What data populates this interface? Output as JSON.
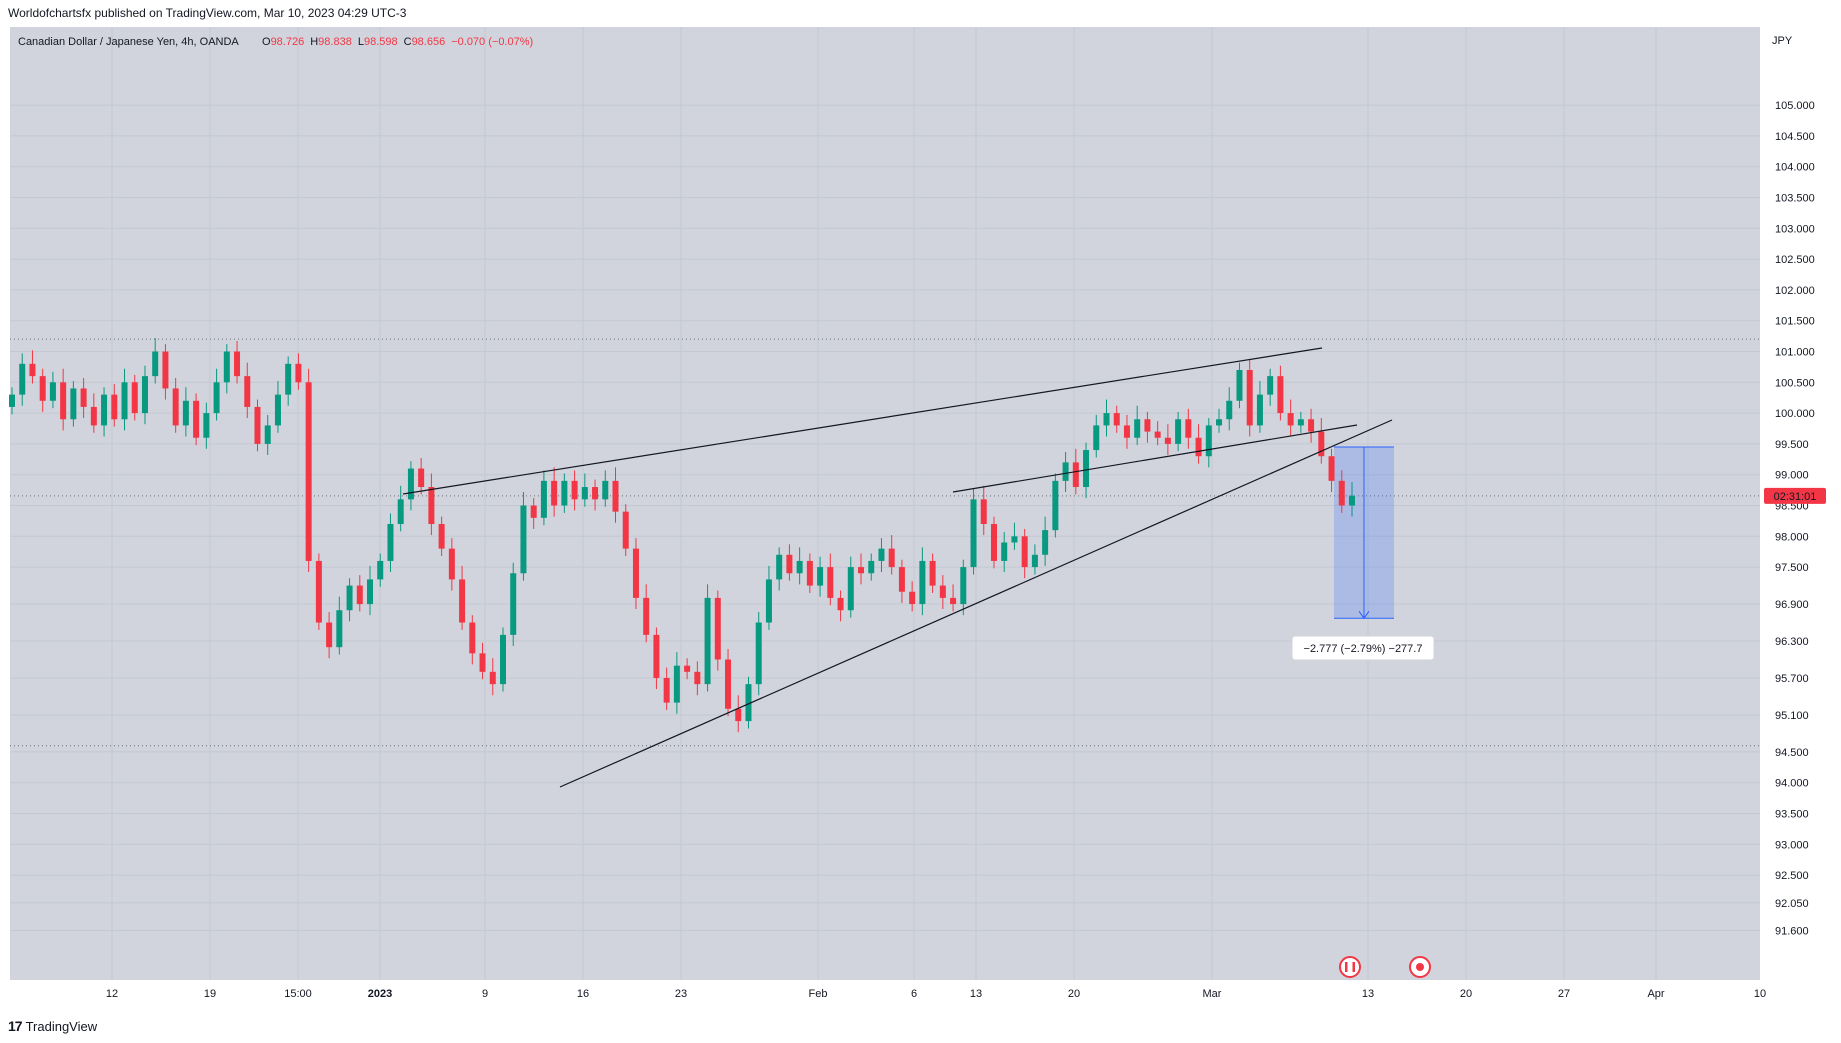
{
  "header": {
    "publisher_line": "Worldofchartsfx published on TradingView.com, Mar 10, 2023 04:29 UTC-3"
  },
  "legend": {
    "symbol": "Canadian Dollar / Japanese Yen, 4h, OANDA",
    "o_label": "O",
    "o_value": "98.726",
    "h_label": "H",
    "h_value": "98.838",
    "l_label": "L",
    "l_value": "98.598",
    "c_label": "C",
    "c_value": "98.656",
    "change": "−0.070 (−0.07%)"
  },
  "footer": {
    "brand": "TradingView",
    "logo_glyph": "17"
  },
  "chart_data": {
    "type": "candlestick",
    "currency": "JPY",
    "y_ticks": [
      "105.000",
      "104.500",
      "104.000",
      "103.500",
      "103.000",
      "102.500",
      "102.000",
      "101.500",
      "101.000",
      "100.500",
      "100.000",
      "99.500",
      "99.000",
      "98.500",
      "98.000",
      "97.500",
      "96.900",
      "96.300",
      "95.700",
      "95.100",
      "94.500",
      "94.000",
      "93.500",
      "93.000",
      "92.500",
      "92.050",
      "91.600"
    ],
    "x_ticks": [
      "12",
      "19",
      "15:00",
      "2023",
      "9",
      "16",
      "23",
      "Feb",
      "6",
      "13",
      "20",
      "Mar",
      "13",
      "20",
      "27",
      "Apr",
      "10"
    ],
    "countdown_label": "02:31:01",
    "current_price": 98.656,
    "horizontal_dotted_levels": [
      101.2,
      98.656,
      94.6
    ],
    "measure_label": "−2.777 (−2.79%) −277.7",
    "measure_range": [
      99.45,
      96.67
    ],
    "series": [
      {
        "values": [
          100.3,
          100.8,
          100.6,
          100.2,
          100.5,
          99.9,
          100.4,
          100.1,
          99.8,
          100.3,
          99.9,
          100.5,
          100.0,
          100.6,
          101.0,
          100.4,
          99.8,
          100.2,
          99.6,
          100.0,
          100.5,
          101.0,
          100.6,
          100.1,
          99.5,
          99.8,
          100.3,
          100.8,
          100.5,
          97.6,
          96.6,
          96.2,
          96.8,
          97.2,
          96.9,
          97.3,
          97.6,
          98.2,
          98.6,
          99.1,
          98.8,
          98.2,
          97.8,
          97.3,
          96.6,
          96.1,
          95.8,
          95.6,
          96.4,
          97.4,
          98.5,
          98.3,
          98.9,
          98.5,
          98.9,
          98.6,
          98.8,
          98.6,
          98.9,
          98.4,
          97.8,
          97.0,
          96.4,
          95.7,
          95.3,
          95.9,
          95.8,
          95.6,
          97.0,
          96.0,
          95.2,
          95.0,
          95.6,
          96.6,
          97.3,
          97.7,
          97.4,
          97.6,
          97.2,
          97.5,
          97.0,
          96.8,
          97.5,
          97.4,
          97.6,
          97.8,
          97.5,
          97.1,
          96.9,
          97.6,
          97.2,
          97.0,
          96.9,
          97.5,
          98.6,
          98.2,
          97.6,
          97.9,
          98.0,
          97.5,
          97.7,
          98.1,
          98.9,
          99.2,
          98.8,
          99.4,
          99.8,
          100.0,
          99.8,
          99.6,
          99.9,
          99.7,
          99.6,
          99.5,
          99.9,
          99.6,
          99.3,
          99.8,
          99.9,
          100.2,
          100.7,
          99.8,
          100.3,
          100.6,
          100.0,
          99.8,
          99.9,
          99.7,
          99.3,
          98.9,
          98.5,
          98.66
        ]
      }
    ]
  }
}
